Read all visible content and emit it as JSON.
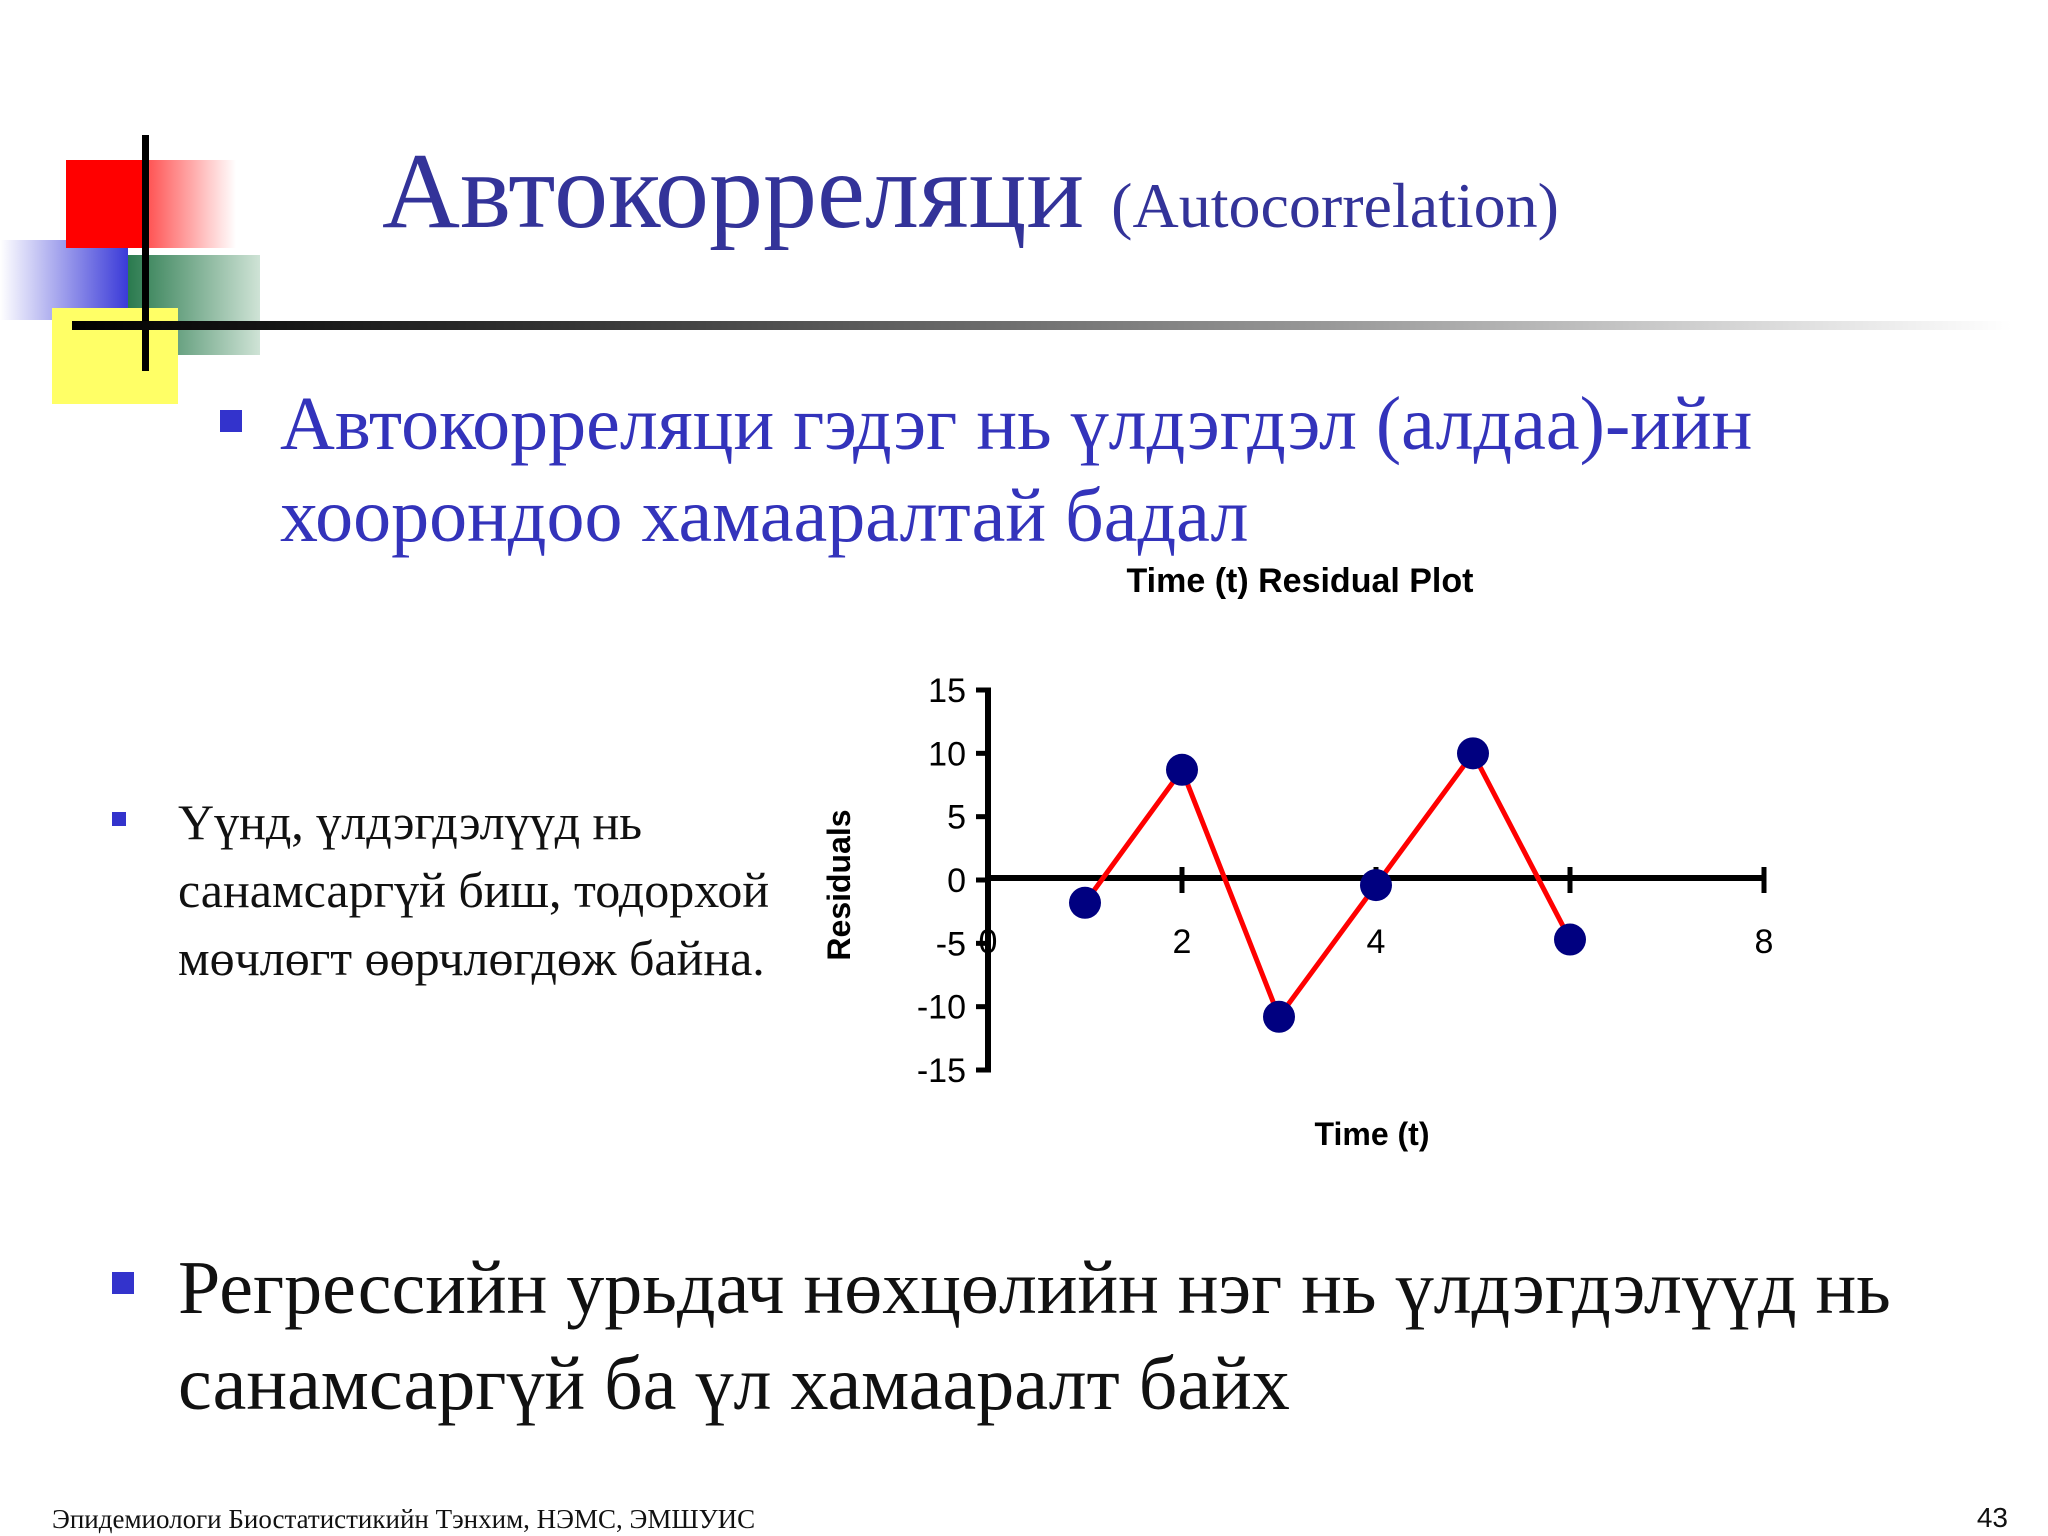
{
  "slide": {
    "title_main": "Автокорреляци",
    "title_sub": "(Autocorrelation)",
    "bullet1": "Автокорреляци гэдэг нь үлдэгдэл (алдаа)-ийн хоорондоо хамааралтай бадал",
    "bullet2": "Үүнд, үлдэгдэлүүд нь санамсаргүй биш, тодорхой мөчлөгт өөрчлөгдөж байна.",
    "bullet3": "Регрессийн урьдач нөхцөлийн нэг нь үлдэгдэлүүд нь санамсаргүй ба үл хамааралт байх",
    "footer": "Эпидемиологи Биостатистикийн Тэнхим, НЭМС, ЭМШУИС",
    "page_number": "43"
  },
  "chart_data": {
    "type": "line",
    "title": "Time (t)  Residual Plot",
    "xlabel": "Time (t)",
    "ylabel": "Residuals",
    "xlim": [
      0,
      8
    ],
    "ylim": [
      -15,
      15
    ],
    "x_ticks": [
      "0",
      "2",
      "4",
      "6",
      "8"
    ],
    "y_ticks": [
      "15",
      "10",
      "5",
      "0",
      "-5",
      "-10",
      "-15"
    ],
    "x": [
      1,
      2,
      3,
      4,
      5,
      6
    ],
    "y": [
      -1.8,
      8.7,
      -10.8,
      -0.4,
      10,
      -4.7
    ],
    "line_color": "#ff0000",
    "marker_color": "#000080",
    "grid": false,
    "legend": false
  }
}
